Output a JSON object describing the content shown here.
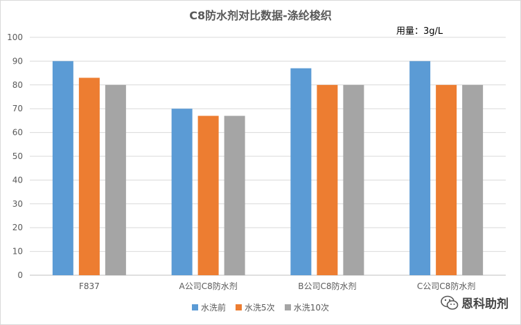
{
  "chart_data": {
    "type": "bar",
    "title": "C8防水剂对比数据-涤纶梭织",
    "annotation": "用量：3g/L",
    "categories": [
      "F837",
      "A公司C8防水剂",
      "B公司C8防水剂",
      "C公司C8防水剂"
    ],
    "series": [
      {
        "name": "水洗前",
        "color": "#5b9bd5",
        "values": [
          90,
          70,
          87,
          90
        ]
      },
      {
        "name": "水洗5次",
        "color": "#ed7d31",
        "values": [
          83,
          67,
          80,
          80
        ]
      },
      {
        "name": "水洗10次",
        "color": "#a5a5a5",
        "values": [
          80,
          67,
          80,
          80
        ]
      }
    ],
    "ylim": [
      0,
      100
    ],
    "yticks": [
      "0",
      "10",
      "20",
      "30",
      "40",
      "50",
      "60",
      "70",
      "80",
      "90",
      "100"
    ],
    "grid": true,
    "legend": "bottom"
  },
  "watermark": {
    "text": "恩科助剂",
    "icon": "wechat-icon"
  }
}
